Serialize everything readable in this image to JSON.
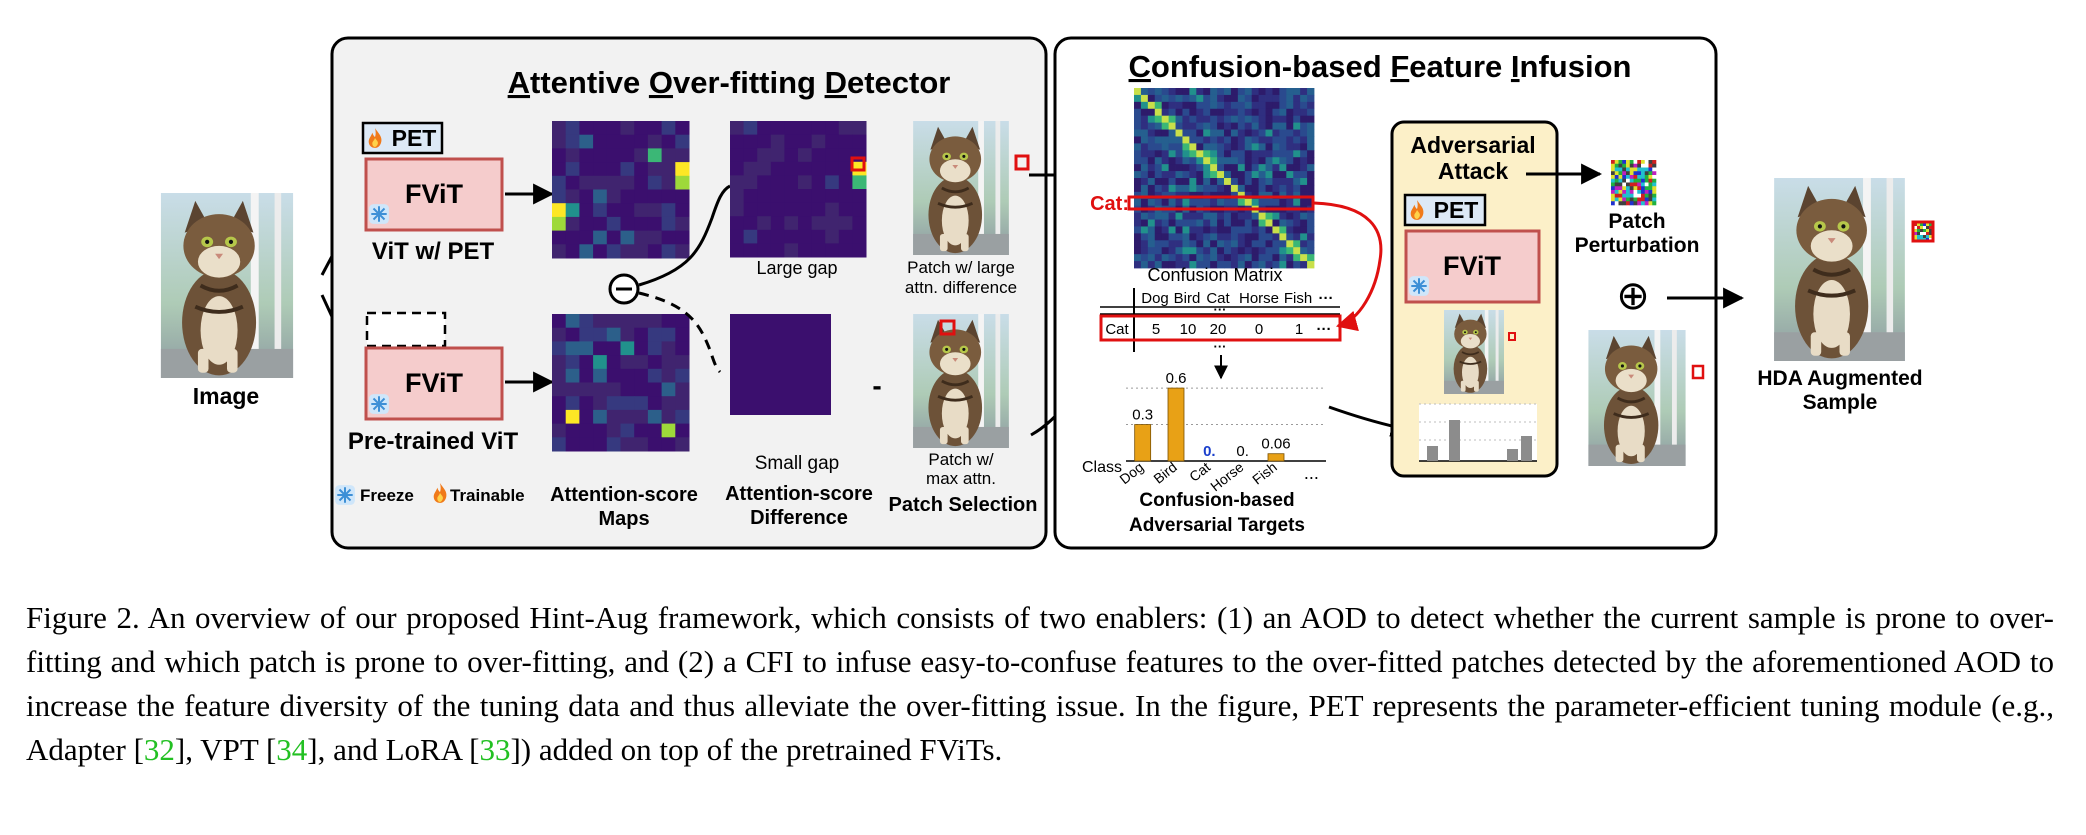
{
  "aod": {
    "title_parts": [
      {
        "u": "A",
        "rest": "ttentive "
      },
      {
        "u": "O",
        "rest": "ver-fitting "
      },
      {
        "u": "D",
        "rest": "etector"
      }
    ]
  },
  "cfi": {
    "title_parts": [
      {
        "u": "C",
        "rest": "onfusion-based "
      },
      {
        "u": "F",
        "rest": "eature "
      },
      {
        "u": "I",
        "rest": "nfusion"
      }
    ]
  },
  "labels": {
    "image": "Image",
    "pet": "PET",
    "fvit": "FViT",
    "vit_pet": "ViT w/ PET",
    "pretrained_vit": "Pre-trained ViT",
    "freeze": "Freeze",
    "trainable": "Trainable",
    "attn_maps_1": "Attention-score",
    "attn_maps_2": "Maps",
    "attn_diff_1": "Attention-score",
    "attn_diff_2": "Difference",
    "large_gap": "Large gap",
    "small_gap": "Small gap",
    "patch_large_1": "Patch w/ large",
    "patch_large_2": "attn. difference",
    "patch_max_1": "Patch w/",
    "patch_max_2": "max attn.",
    "patch_selection": "Patch Selection",
    "minus": "-",
    "confusion_matrix": "Confusion Matrix",
    "cat_label": "Cat:",
    "adv_targets_1": "Confusion-based",
    "adv_targets_2": "Adversarial Targets",
    "adv_attack_1": "Adversarial",
    "adv_attack_2": "Attack",
    "patch_pert_1": "Patch",
    "patch_pert_2": "Perturbation",
    "hda_1": "HDA Augmented",
    "hda_2": "Sample",
    "plus": "⊕"
  },
  "table": {
    "headers": [
      "Dog",
      "Bird",
      "Cat",
      "Horse",
      "Fish",
      "···"
    ],
    "row_label": "Cat",
    "row_values": [
      "5",
      "10",
      "20",
      "0",
      "1",
      "···"
    ],
    "dots": "···"
  },
  "chart_data": {
    "type": "bar",
    "categories": [
      "Dog",
      "Bird",
      "Cat",
      "Horse",
      "Fish",
      "..."
    ],
    "values": [
      0.3,
      0.6,
      0.0,
      0.0,
      0.06,
      null
    ],
    "value_labels": [
      "0.3",
      "0.6",
      "0.",
      "0.",
      "0.06",
      ""
    ],
    "xlabel": "Class",
    "ylim": [
      0,
      0.65
    ],
    "grid": true,
    "colors": {
      "bar": "#e8a116",
      "highlight_label": "#1a3fcc"
    }
  },
  "caption": {
    "segments": [
      {
        "t": "Figure 2.  An overview of our proposed Hint-Aug framework, which consists of two enablers: (1) an AOD to detect whether the current sample is prone to over-fitting and which patch is prone to over-fitting, and (2) a CFI to infuse easy-to-confuse features to the over-fitted patches detected by the aforementioned AOD to increase the feature diversity of the tuning data and thus alleviate the over-fitting issue. In the figure, PET represents the parameter-efficient tuning module (e.g., Adapter ["
      },
      {
        "t": "32",
        "ref": true
      },
      {
        "t": "], VPT ["
      },
      {
        "t": "34",
        "ref": true
      },
      {
        "t": "], and LoRA ["
      },
      {
        "t": "33",
        "ref": true
      },
      {
        "t": "]) added on top of the pretrained FViTs."
      }
    ]
  },
  "colors": {
    "panel_bg": "#f2f2f2",
    "adv_bg": "#fcf0c8",
    "fvit_fill": "#f5cccc",
    "fvit_border": "#c0504d",
    "red": "#e01010",
    "heatmap_dark": "#3b0f6e",
    "bar": "#e8a116"
  }
}
